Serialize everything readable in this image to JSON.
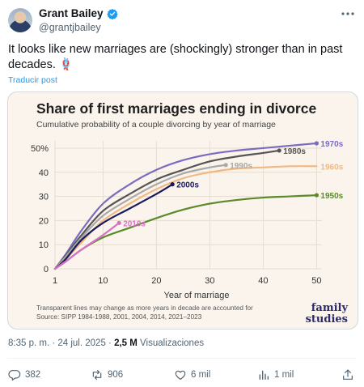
{
  "tweet": {
    "display_name": "Grant Bailey",
    "handle": "@grantjbailey",
    "text": "It looks like new marriages are (shockingly) stronger than in past decades. 🪢",
    "translate_label": "Traducir post",
    "time": "8:35 p. m.",
    "date": "24 jul. 2025",
    "views_count": "2,5 M",
    "views_label": "Visualizaciones",
    "icons": [
      "verified-badge-icon",
      "more-options-icon",
      "reply-icon",
      "repost-icon",
      "like-icon",
      "views-bar-icon",
      "bookmark-icon",
      "share-icon"
    ],
    "accent_color": "#1d9bf0"
  },
  "actions": {
    "replies": "382",
    "reposts": "906",
    "likes": "6 mil",
    "views": "1 mil"
  },
  "chart_data": {
    "type": "line",
    "title": "Share of first marriages ending in divorce",
    "subtitle": "Cumulative probability of a couple divorcing by year of marriage",
    "xlabel": "Year of marriage",
    "ylabel": "",
    "x_ticks": [
      1,
      10,
      20,
      30,
      40,
      50
    ],
    "y_ticks": [
      0,
      10,
      20,
      30,
      40,
      50
    ],
    "y_tick_suffix_top": "%",
    "xlim": [
      1,
      51
    ],
    "ylim": [
      0,
      53
    ],
    "grid": true,
    "note": "Transparent lines may change as more years in decade are accounted for",
    "source": "Source: SIPP 1984-1988, 2001, 2004, 2014, 2021–2023",
    "logo": "family studies",
    "background": "#fbf4ec",
    "series": [
      {
        "name": "1970s",
        "color": "#7a6cc0",
        "end_marker": true,
        "x": [
          1,
          3,
          6,
          10,
          15,
          20,
          25,
          30,
          35,
          40,
          45,
          50
        ],
        "y": [
          0,
          6,
          16,
          27,
          35,
          41,
          45,
          47.5,
          49,
          50,
          51,
          52
        ]
      },
      {
        "name": "1980s",
        "color": "#555555",
        "end_marker": true,
        "x": [
          1,
          3,
          6,
          10,
          15,
          20,
          25,
          30,
          35,
          40,
          43
        ],
        "y": [
          0,
          5.5,
          14,
          24,
          31,
          37,
          41,
          44.5,
          46.5,
          48,
          49
        ]
      },
      {
        "name": "1990s",
        "color": "#a9a9a9",
        "end_marker": true,
        "x": [
          1,
          3,
          6,
          10,
          15,
          20,
          25,
          30,
          33
        ],
        "y": [
          0,
          5,
          13,
          22,
          29,
          35,
          39.5,
          42,
          43
        ]
      },
      {
        "name": "1960s",
        "color": "#f0b882",
        "end_marker": false,
        "x": [
          1,
          3,
          6,
          10,
          15,
          20,
          25,
          30,
          35,
          40,
          45,
          50
        ],
        "y": [
          0,
          4,
          11,
          20,
          27,
          33,
          37.5,
          40,
          41.5,
          42,
          42.5,
          42.5
        ]
      },
      {
        "name": "2000s",
        "color": "#1a1a5e",
        "end_marker": true,
        "x": [
          1,
          3,
          6,
          10,
          15,
          20,
          23
        ],
        "y": [
          0,
          4,
          12,
          19,
          25,
          31,
          35
        ]
      },
      {
        "name": "1950s",
        "color": "#5b8a2b",
        "end_marker": true,
        "x": [
          1,
          3,
          6,
          10,
          15,
          20,
          25,
          30,
          35,
          40,
          45,
          50
        ],
        "y": [
          0,
          3,
          8,
          13,
          17,
          21,
          24.5,
          27,
          28.5,
          29.5,
          30,
          30.5
        ]
      },
      {
        "name": "2010s",
        "color": "#d870c8",
        "end_marker": true,
        "x": [
          1,
          3,
          6,
          10,
          13
        ],
        "y": [
          0,
          3,
          8,
          14,
          19
        ]
      }
    ]
  }
}
